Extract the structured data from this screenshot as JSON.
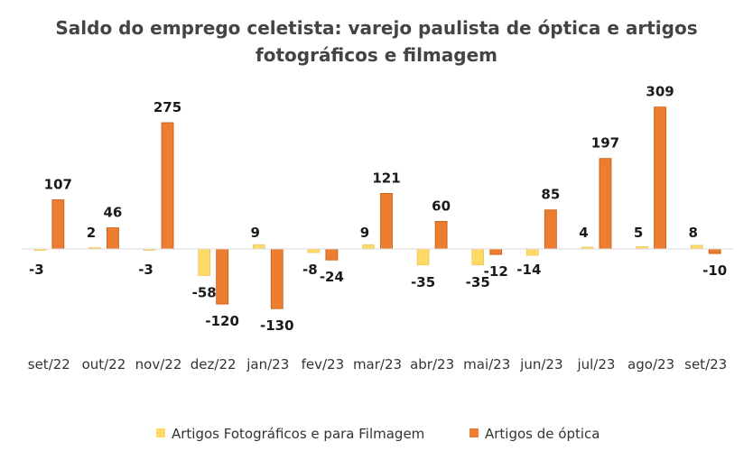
{
  "chart_data": {
    "type": "bar",
    "title": "Saldo do emprego celetista: varejo paulista de óptica e artigos fotográficos e filmagem",
    "title_lines": [
      "Saldo do emprego celetista: varejo paulista de óptica e artigos",
      "fotográficos e filmagem"
    ],
    "categories": [
      "set/22",
      "out/22",
      "nov/22",
      "dez/22",
      "jan/23",
      "fev/23",
      "mar/23",
      "abr/23",
      "mai/23",
      "jun/23",
      "jul/23",
      "ago/23",
      "set/23"
    ],
    "series": [
      {
        "name": "Artigos Fotográficos e para Filmagem",
        "color": "#FFD966",
        "values": [
          -3,
          2,
          -3,
          -58,
          9,
          -8,
          9,
          -35,
          -35,
          -14,
          4,
          5,
          8
        ]
      },
      {
        "name": "Artigos de óptica",
        "color": "#ED7D31",
        "values": [
          107,
          46,
          275,
          -120,
          -130,
          -24,
          121,
          60,
          -12,
          85,
          197,
          309,
          -10
        ]
      }
    ],
    "ylim": [
      -150,
      320
    ],
    "xlabel": "",
    "ylabel": "",
    "grid": false,
    "legend_position": "bottom"
  }
}
